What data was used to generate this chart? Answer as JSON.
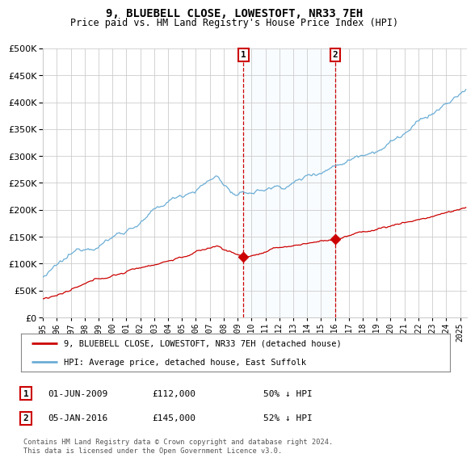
{
  "title": "9, BLUEBELL CLOSE, LOWESTOFT, NR33 7EH",
  "subtitle": "Price paid vs. HM Land Registry's House Price Index (HPI)",
  "legend_line1": "9, BLUEBELL CLOSE, LOWESTOFT, NR33 7EH (detached house)",
  "legend_line2": "HPI: Average price, detached house, East Suffolk",
  "annotation1_date": "01-JUN-2009",
  "annotation1_price": "£112,000",
  "annotation1_hpi": "50% ↓ HPI",
  "annotation2_date": "05-JAN-2016",
  "annotation2_price": "£145,000",
  "annotation2_hpi": "52% ↓ HPI",
  "footnote": "Contains HM Land Registry data © Crown copyright and database right 2024.\nThis data is licensed under the Open Government Licence v3.0.",
  "hpi_color": "#6baed6",
  "price_color": "#cc0000",
  "marker_color": "#cc0000",
  "vline_color": "#cc0000",
  "shade_color": "#ddeeff",
  "grid_color": "#cccccc",
  "bg_color": "#ffffff",
  "ylim": [
    0,
    500000
  ],
  "yticks": [
    0,
    50000,
    100000,
    150000,
    200000,
    250000,
    300000,
    350000,
    400000,
    450000,
    500000
  ],
  "year_start": 1995,
  "year_end": 2025,
  "sale1_year": 2009.42,
  "sale1_price": 112000,
  "sale2_year": 2016.01,
  "sale2_price": 145000
}
